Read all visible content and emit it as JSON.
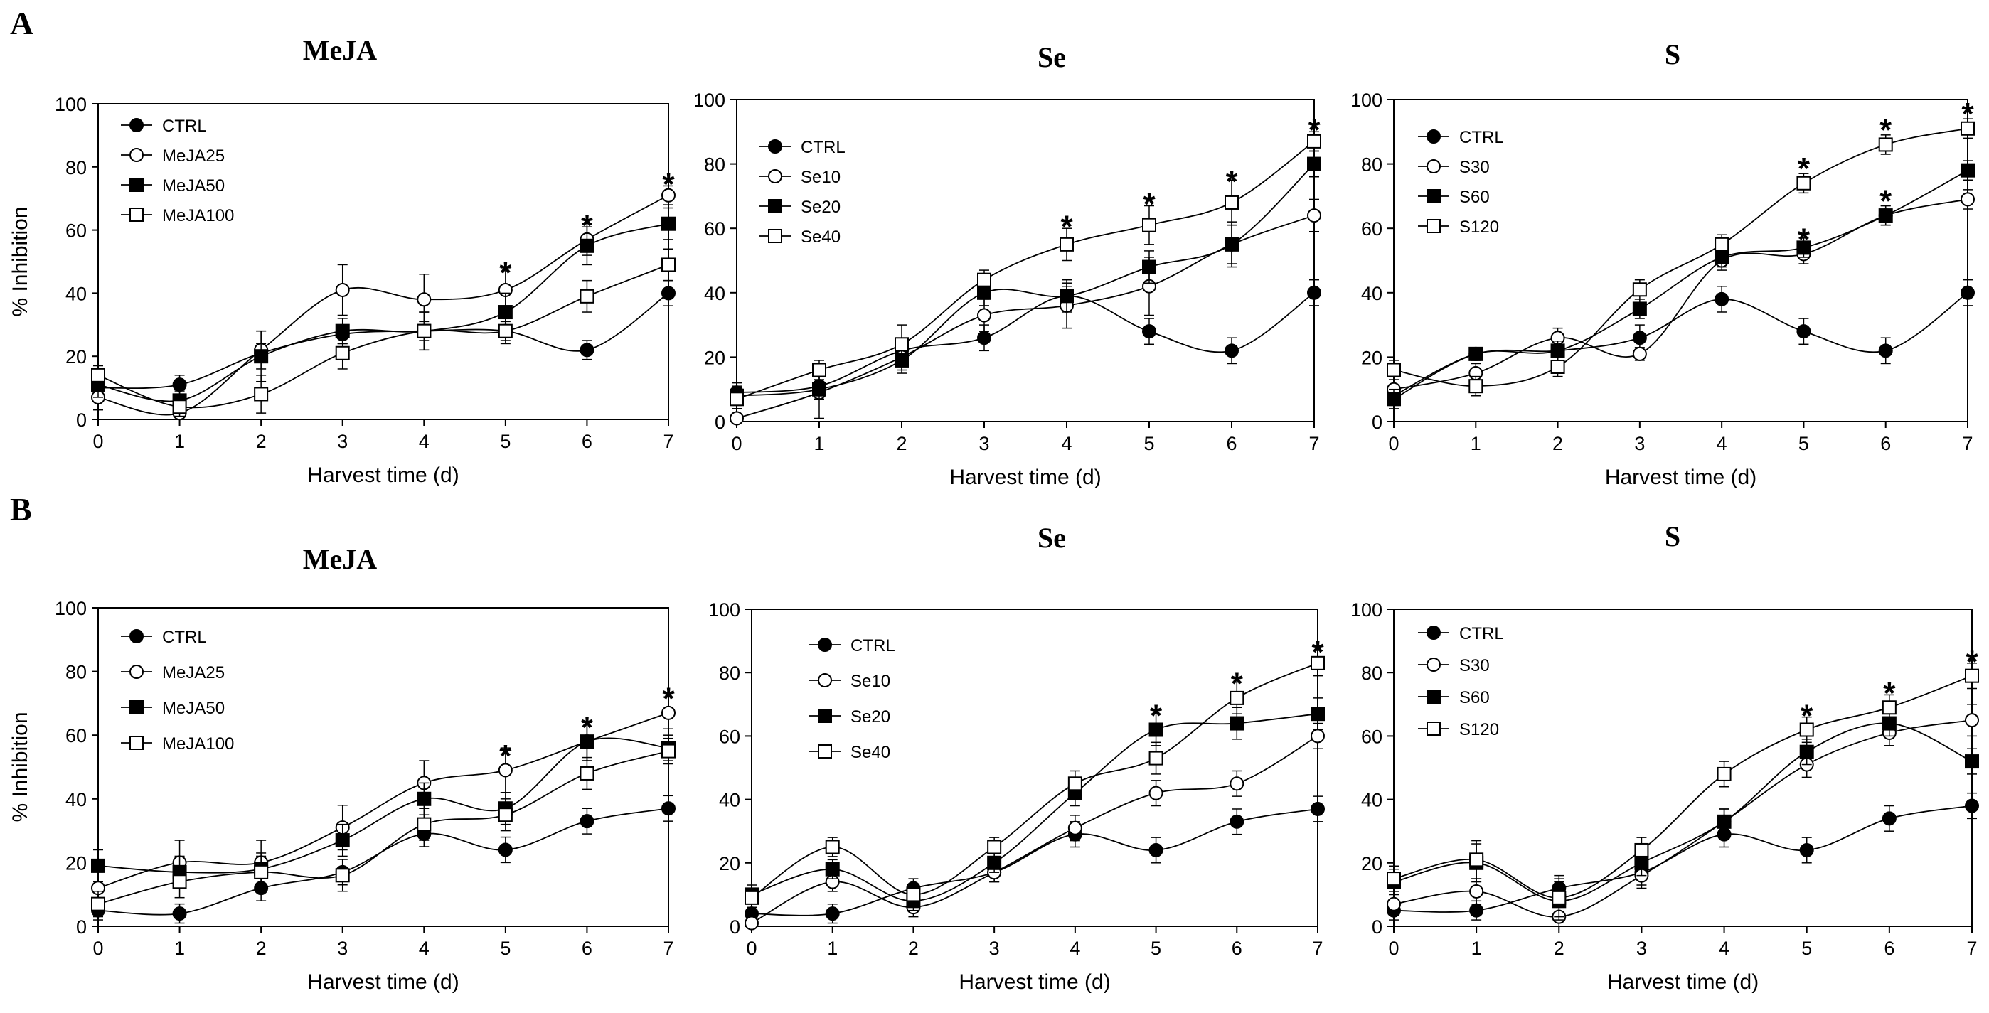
{
  "figure": {
    "panel_labels": [
      "A",
      "B"
    ],
    "background": "#ffffff",
    "ink": "#000000",
    "series_styles": [
      {
        "marker": "circle",
        "fill": "#000000"
      },
      {
        "marker": "circle",
        "fill": "#ffffff"
      },
      {
        "marker": "square",
        "fill": "#000000"
      },
      {
        "marker": "square",
        "fill": "#ffffff"
      }
    ]
  },
  "chart_data": [
    {
      "type": "line",
      "panel": "A",
      "title": "MeJA",
      "xlabel": "Harvest time (d)",
      "ylabel": "% Inhibition",
      "x": [
        0,
        1,
        2,
        3,
        4,
        5,
        6,
        7
      ],
      "xlim": [
        0,
        7
      ],
      "ylim": [
        0,
        100
      ],
      "yticks": [
        0,
        20,
        40,
        60,
        80,
        100
      ],
      "legend_position": "top-left",
      "series": [
        {
          "name": "CTRL",
          "values": [
            10,
            11,
            21,
            27,
            28,
            28,
            22,
            40
          ],
          "errors": [
            3,
            3,
            3,
            3,
            3,
            3,
            3,
            4
          ]
        },
        {
          "name": "MeJA25",
          "values": [
            7,
            2,
            22,
            41,
            38,
            41,
            57,
            71
          ],
          "errors": [
            4,
            3,
            6,
            8,
            8,
            7,
            5,
            3
          ]
        },
        {
          "name": "MeJA50",
          "values": [
            11,
            6,
            20,
            28,
            28,
            34,
            55,
            62
          ],
          "errors": [
            4,
            3,
            8,
            4,
            6,
            6,
            6,
            5
          ]
        },
        {
          "name": "MeJA100",
          "values": [
            14,
            4,
            8,
            21,
            28,
            28,
            39,
            49
          ],
          "errors": [
            3,
            3,
            6,
            5,
            6,
            4,
            5,
            5
          ]
        }
      ],
      "significance": [
        {
          "x": 5,
          "y": 49
        },
        {
          "x": 6,
          "y": 64
        },
        {
          "x": 7,
          "y": 77
        }
      ]
    },
    {
      "type": "line",
      "panel": "A",
      "title": "Se",
      "xlabel": "Harvest time (d)",
      "ylabel": "",
      "x": [
        0,
        1,
        2,
        3,
        4,
        5,
        6,
        7
      ],
      "xlim": [
        0,
        7
      ],
      "ylim": [
        0,
        100
      ],
      "yticks": [
        0,
        20,
        40,
        60,
        80,
        100
      ],
      "legend_position": "top-left",
      "series": [
        {
          "name": "CTRL",
          "values": [
            9,
            11,
            22,
            26,
            39,
            28,
            22,
            40
          ],
          "errors": [
            3,
            3,
            3,
            4,
            3,
            4,
            4,
            4
          ]
        },
        {
          "name": "Se10",
          "values": [
            1,
            9,
            20,
            33,
            36,
            42,
            55,
            64
          ],
          "errors": [
            3,
            8,
            5,
            5,
            7,
            9,
            7,
            5
          ]
        },
        {
          "name": "Se20",
          "values": [
            8,
            10,
            19,
            40,
            39,
            48,
            55,
            80
          ],
          "errors": [
            3,
            3,
            3,
            4,
            5,
            5,
            6,
            4
          ]
        },
        {
          "name": "Se40",
          "values": [
            7,
            16,
            24,
            44,
            55,
            61,
            68,
            87
          ],
          "errors": [
            3,
            3,
            6,
            3,
            5,
            6,
            7,
            3
          ]
        }
      ],
      "significance": [
        {
          "x": 4,
          "y": 63
        },
        {
          "x": 5,
          "y": 70
        },
        {
          "x": 6,
          "y": 77
        },
        {
          "x": 7,
          "y": 93
        }
      ]
    },
    {
      "type": "line",
      "panel": "A",
      "title": "S",
      "xlabel": "Harvest time (d)",
      "ylabel": "",
      "x": [
        0,
        1,
        2,
        3,
        4,
        5,
        6,
        7
      ],
      "xlim": [
        0,
        7
      ],
      "ylim": [
        0,
        100
      ],
      "yticks": [
        0,
        20,
        40,
        60,
        80,
        100
      ],
      "legend_position": "top-left",
      "series": [
        {
          "name": "CTRL",
          "values": [
            8,
            21,
            22,
            26,
            38,
            28,
            22,
            40
          ],
          "errors": [
            3,
            2,
            3,
            4,
            4,
            4,
            4,
            4
          ]
        },
        {
          "name": "S30",
          "values": [
            10,
            15,
            26,
            21,
            50,
            52,
            64,
            69
          ],
          "errors": [
            3,
            3,
            3,
            2,
            3,
            3,
            3,
            3
          ]
        },
        {
          "name": "S60",
          "values": [
            7,
            21,
            22,
            35,
            51,
            54,
            64,
            78
          ],
          "errors": [
            3,
            2,
            3,
            3,
            3,
            3,
            3,
            3
          ]
        },
        {
          "name": "S120",
          "values": [
            16,
            11,
            17,
            41,
            55,
            74,
            86,
            91
          ],
          "errors": [
            3,
            3,
            3,
            3,
            3,
            3,
            3,
            3
          ]
        }
      ],
      "significance": [
        {
          "x": 5,
          "y": 81
        },
        {
          "x": 6,
          "y": 93
        },
        {
          "x": 5,
          "y": 59
        },
        {
          "x": 6,
          "y": 71
        },
        {
          "x": 7,
          "y": 98
        }
      ]
    },
    {
      "type": "line",
      "panel": "B",
      "title": "MeJA",
      "xlabel": "Harvest time (d)",
      "ylabel": "% Inhibition",
      "x": [
        0,
        1,
        2,
        3,
        4,
        5,
        6,
        7
      ],
      "xlim": [
        0,
        7
      ],
      "ylim": [
        0,
        100
      ],
      "yticks": [
        0,
        20,
        40,
        60,
        80,
        100
      ],
      "legend_position": "top-left",
      "series": [
        {
          "name": "CTRL",
          "values": [
            5,
            4,
            12,
            17,
            29,
            24,
            33,
            37
          ],
          "errors": [
            3,
            3,
            4,
            4,
            4,
            4,
            4,
            4
          ]
        },
        {
          "name": "MeJA25",
          "values": [
            12,
            20,
            20,
            31,
            45,
            49,
            58,
            67
          ],
          "errors": [
            5,
            7,
            7,
            7,
            7,
            7,
            6,
            5
          ]
        },
        {
          "name": "MeJA50",
          "values": [
            19,
            17,
            18,
            27,
            40,
            37,
            58,
            56
          ],
          "errors": [
            5,
            5,
            5,
            5,
            5,
            5,
            6,
            4
          ]
        },
        {
          "name": "MeJA100",
          "values": [
            7,
            14,
            17,
            16,
            32,
            35,
            48,
            55
          ],
          "errors": [
            4,
            5,
            5,
            5,
            5,
            5,
            5,
            4
          ]
        }
      ],
      "significance": [
        {
          "x": 5,
          "y": 56
        },
        {
          "x": 6,
          "y": 65
        },
        {
          "x": 7,
          "y": 74
        }
      ]
    },
    {
      "type": "line",
      "panel": "B",
      "title": "Se",
      "xlabel": "Harvest time (d)",
      "ylabel": "",
      "x": [
        0,
        1,
        2,
        3,
        4,
        5,
        6,
        7
      ],
      "xlim": [
        0,
        7
      ],
      "ylim": [
        0,
        100
      ],
      "yticks": [
        0,
        20,
        40,
        60,
        80,
        100
      ],
      "legend_position": "top-left",
      "series": [
        {
          "name": "CTRL",
          "values": [
            4,
            4,
            12,
            17,
            29,
            24,
            33,
            37
          ],
          "errors": [
            3,
            3,
            3,
            3,
            4,
            4,
            4,
            4
          ]
        },
        {
          "name": "Se10",
          "values": [
            1,
            14,
            6,
            17,
            31,
            42,
            45,
            60
          ],
          "errors": [
            3,
            3,
            3,
            3,
            4,
            4,
            4,
            4
          ]
        },
        {
          "name": "Se20",
          "values": [
            10,
            18,
            8,
            20,
            42,
            62,
            64,
            67
          ],
          "errors": [
            3,
            3,
            3,
            3,
            4,
            5,
            5,
            5
          ]
        },
        {
          "name": "Se40",
          "values": [
            9,
            25,
            10,
            25,
            45,
            53,
            72,
            83
          ],
          "errors": [
            3,
            3,
            3,
            3,
            4,
            5,
            5,
            4
          ]
        }
      ],
      "significance": [
        {
          "x": 5,
          "y": 69
        },
        {
          "x": 6,
          "y": 79
        },
        {
          "x": 7,
          "y": 89
        }
      ]
    },
    {
      "type": "line",
      "panel": "B",
      "title": "S",
      "xlabel": "Harvest time (d)",
      "ylabel": "",
      "x": [
        0,
        1,
        2,
        3,
        4,
        5,
        6,
        7
      ],
      "xlim": [
        0,
        7
      ],
      "ylim": [
        0,
        100
      ],
      "yticks": [
        0,
        20,
        40,
        60,
        80,
        100
      ],
      "legend_position": "top-left",
      "series": [
        {
          "name": "CTRL",
          "values": [
            5,
            5,
            12,
            17,
            29,
            24,
            34,
            38
          ],
          "errors": [
            3,
            3,
            4,
            4,
            4,
            4,
            4,
            4
          ]
        },
        {
          "name": "S30",
          "values": [
            7,
            11,
            3,
            16,
            33,
            51,
            61,
            65
          ],
          "errors": [
            3,
            4,
            4,
            4,
            4,
            4,
            4,
            5
          ]
        },
        {
          "name": "S60",
          "values": [
            14,
            20,
            8,
            20,
            33,
            55,
            64,
            52
          ],
          "errors": [
            4,
            6,
            6,
            4,
            4,
            4,
            4,
            4
          ]
        },
        {
          "name": "S120",
          "values": [
            15,
            21,
            9,
            24,
            48,
            62,
            69,
            79
          ],
          "errors": [
            4,
            6,
            6,
            4,
            4,
            4,
            4,
            4
          ]
        }
      ],
      "significance": [
        {
          "x": 5,
          "y": 69
        },
        {
          "x": 6,
          "y": 76
        },
        {
          "x": 7,
          "y": 86
        }
      ]
    }
  ]
}
